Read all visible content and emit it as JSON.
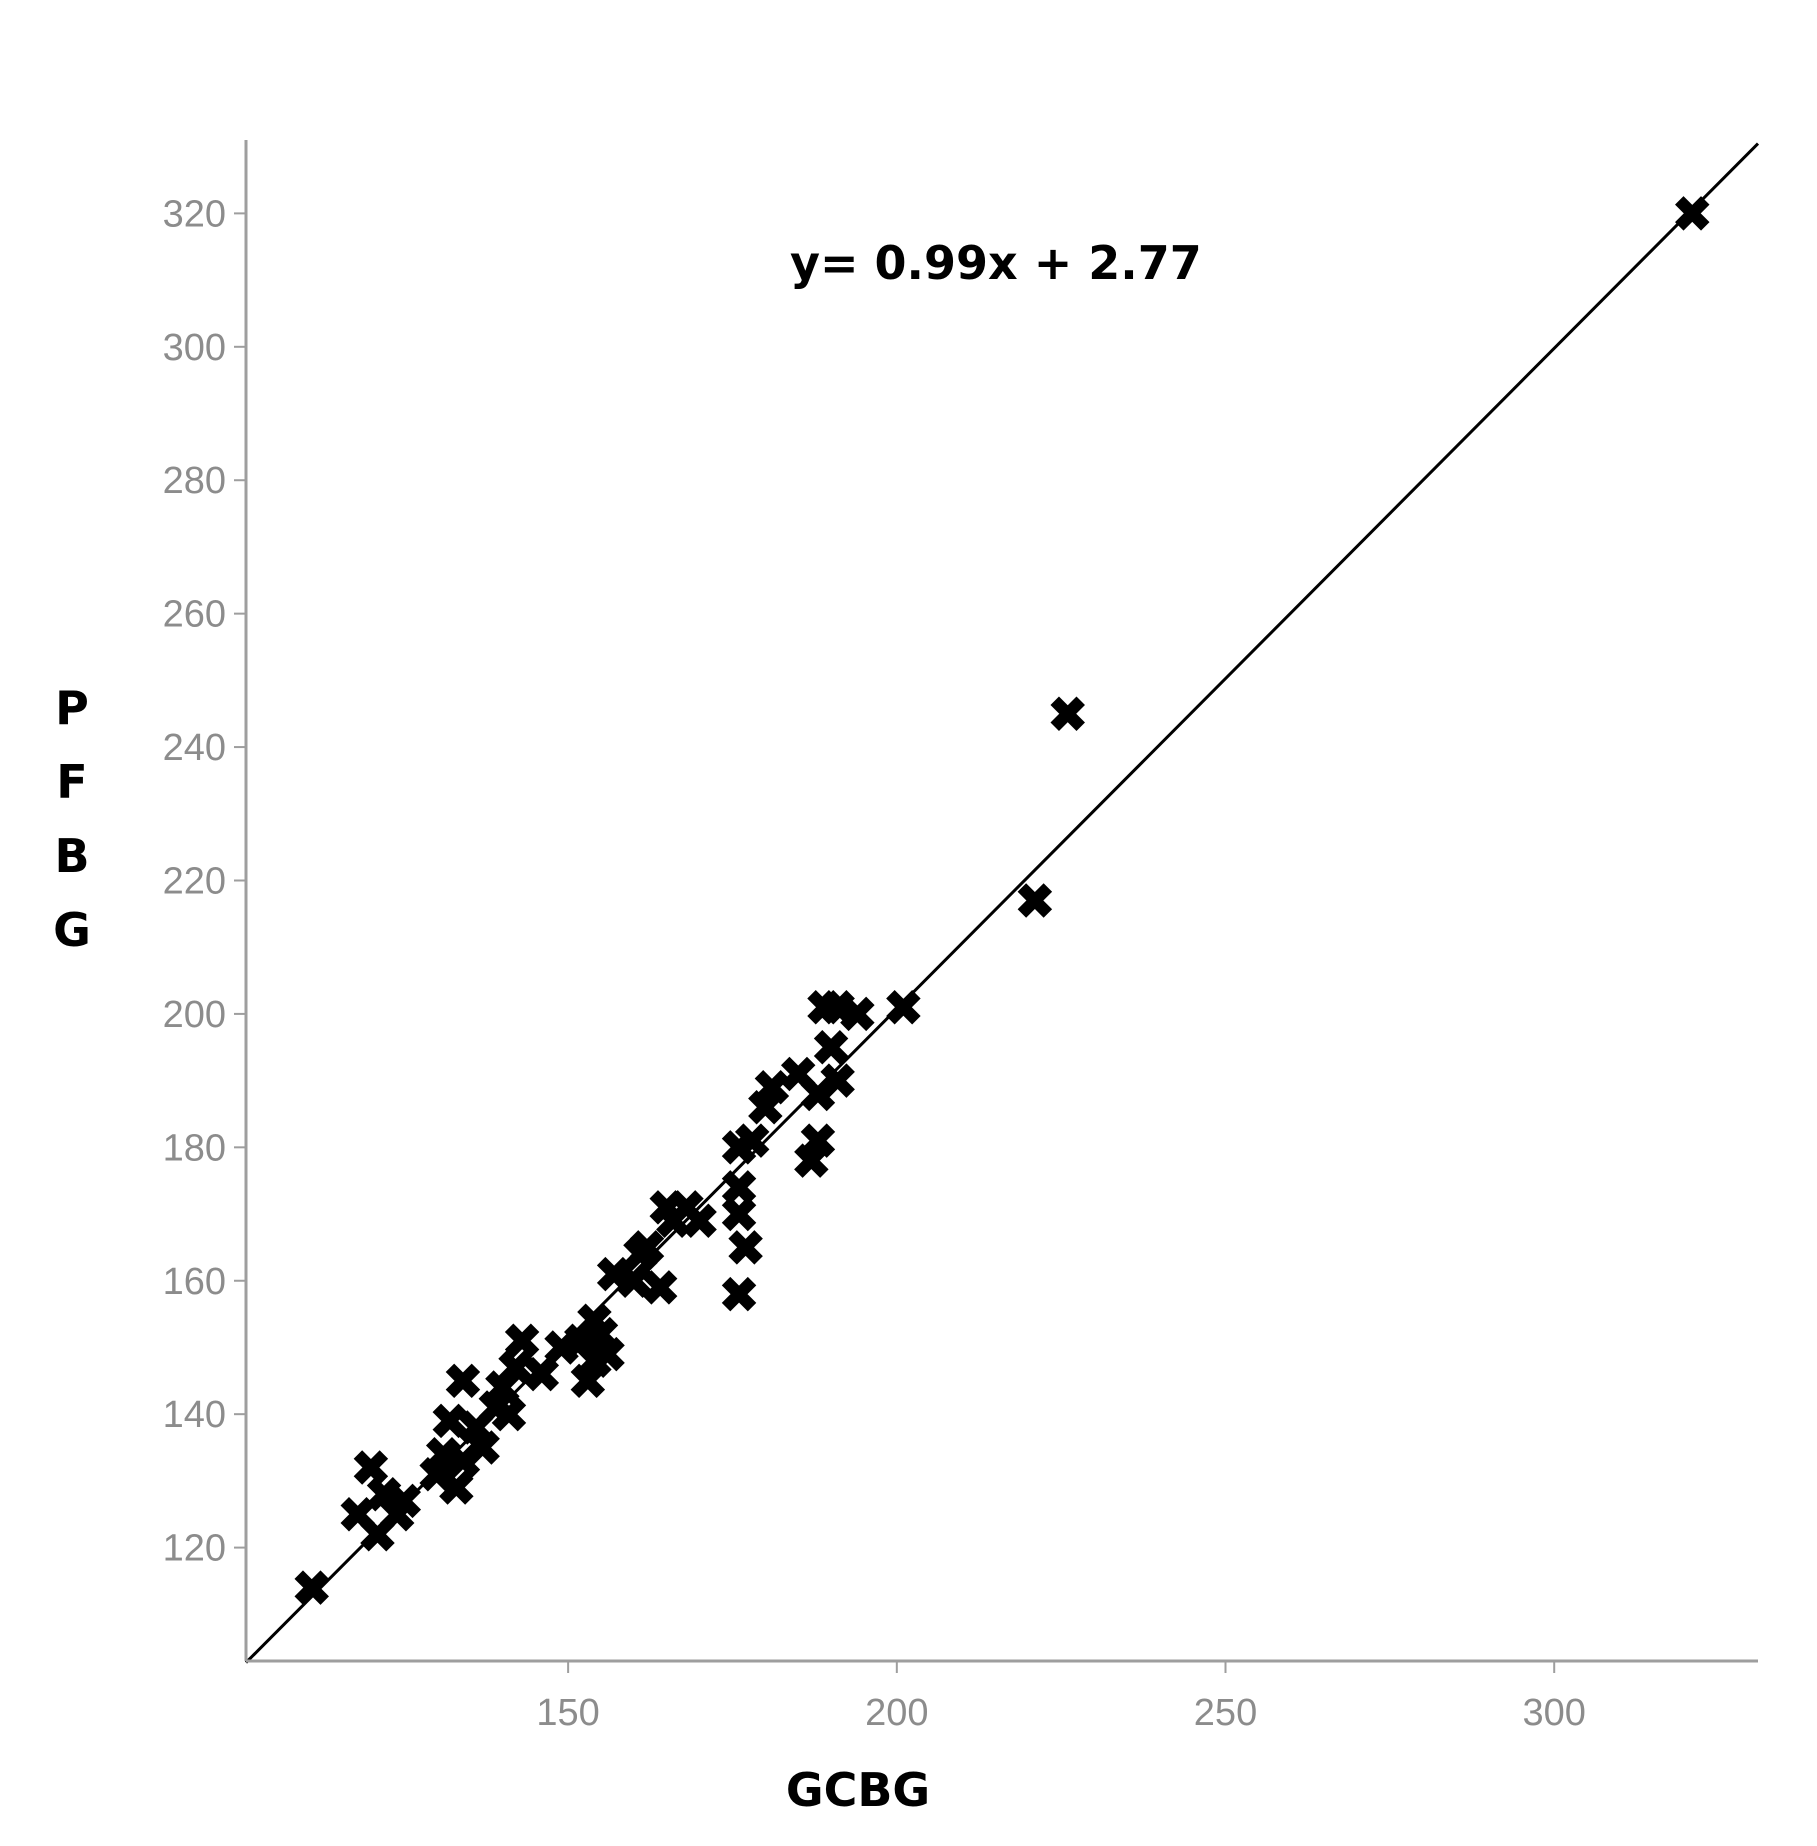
{
  "chart_data": {
    "type": "scatter",
    "xlabel": "GCBG",
    "ylabel": "PFBG",
    "xlim": [
      101,
      331
    ],
    "ylim": [
      103,
      331
    ],
    "xticks": [
      150,
      200,
      250,
      300
    ],
    "yticks": [
      120,
      140,
      160,
      180,
      200,
      220,
      240,
      260,
      280,
      300,
      320
    ],
    "grid": false,
    "legend": "none",
    "marker": "x-cross",
    "annotation": "y= 0.99x + 2.77",
    "fit_line": {
      "slope": 0.99,
      "intercept": 2.77
    },
    "colors": {
      "points": "#000000",
      "line": "#000000",
      "axis": "#9e9e9e",
      "tick_text": "#8c8c8c"
    },
    "series": [
      {
        "points": [
          [
            111,
            114
          ],
          [
            118,
            125
          ],
          [
            120,
            132
          ],
          [
            121,
            122
          ],
          [
            122,
            128
          ],
          [
            124,
            125
          ],
          [
            125,
            127
          ],
          [
            130,
            131
          ],
          [
            131,
            134
          ],
          [
            132,
            139
          ],
          [
            133,
            129
          ],
          [
            134,
            145
          ],
          [
            134,
            133
          ],
          [
            136,
            138
          ],
          [
            137,
            135
          ],
          [
            139,
            141
          ],
          [
            140,
            144
          ],
          [
            141,
            140
          ],
          [
            142,
            147
          ],
          [
            143,
            151
          ],
          [
            146,
            146
          ],
          [
            149,
            150
          ],
          [
            152,
            151
          ],
          [
            153,
            145
          ],
          [
            154,
            148
          ],
          [
            154,
            154
          ],
          [
            155,
            152
          ],
          [
            156,
            149
          ],
          [
            157,
            161
          ],
          [
            160,
            160
          ],
          [
            161,
            164
          ],
          [
            162,
            165
          ],
          [
            164,
            159
          ],
          [
            165,
            171
          ],
          [
            166,
            169
          ],
          [
            168,
            171
          ],
          [
            170,
            169
          ],
          [
            176,
            180
          ],
          [
            176,
            158
          ],
          [
            176,
            170
          ],
          [
            176,
            174
          ],
          [
            177,
            165
          ],
          [
            178,
            181
          ],
          [
            180,
            186
          ],
          [
            181,
            189
          ],
          [
            185,
            191
          ],
          [
            187,
            178
          ],
          [
            188,
            188
          ],
          [
            188,
            181
          ],
          [
            189,
            201
          ],
          [
            190,
            195
          ],
          [
            191,
            190
          ],
          [
            191,
            201
          ],
          [
            194,
            200
          ],
          [
            201,
            201
          ],
          [
            221,
            217
          ],
          [
            226,
            245
          ],
          [
            321,
            320
          ]
        ]
      }
    ]
  }
}
